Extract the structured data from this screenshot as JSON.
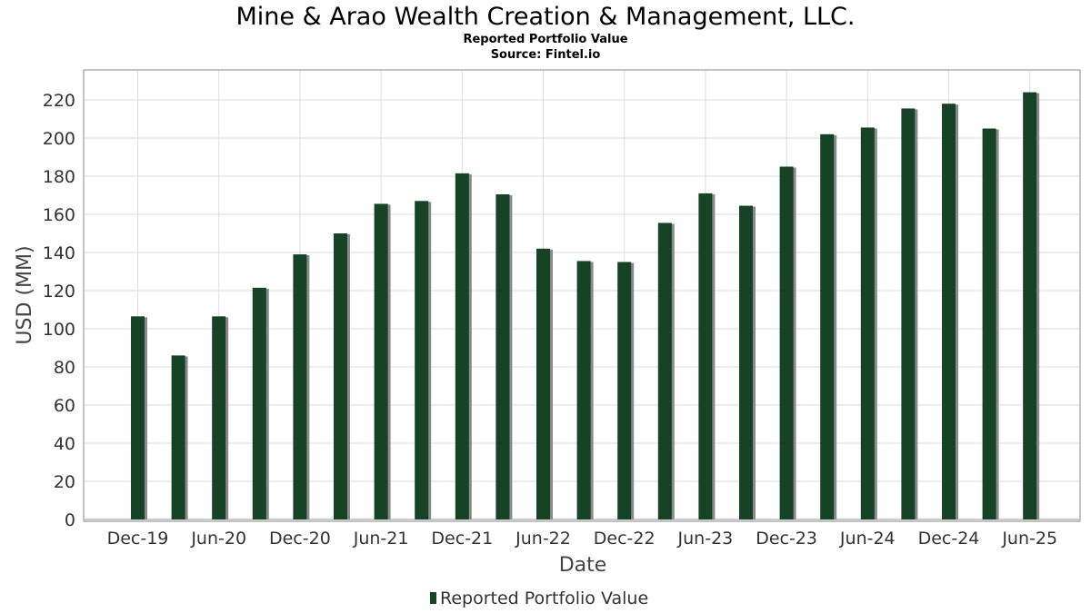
{
  "header": {
    "title": "Mine & Arao Wealth Creation & Management, LLC.",
    "subtitle": "Reported Portfolio Value",
    "source": "Source: Fintel.io"
  },
  "colors": {
    "bar": "#164226",
    "bar_shadow": "#8a8a8a",
    "grid": "#dddddd",
    "plot_border": "#8a8a8a"
  },
  "chart_data": {
    "type": "bar",
    "title": "Mine & Arao Wealth Creation & Management, LLC.",
    "subtitle": "Reported Portfolio Value",
    "xlabel": "Date",
    "ylabel": "USD (MM)",
    "ylim": [
      0,
      230
    ],
    "yticks": [
      0,
      20,
      40,
      60,
      80,
      100,
      120,
      140,
      160,
      180,
      200,
      220
    ],
    "grid": true,
    "legend": "bottom-center",
    "categories": [
      "Dec-19",
      "Mar-20",
      "Jun-20",
      "Sep-20",
      "Dec-20",
      "Mar-21",
      "Jun-21",
      "Sep-21",
      "Dec-21",
      "Mar-22",
      "Jun-22",
      "Sep-22",
      "Dec-22",
      "Mar-23",
      "Jun-23",
      "Sep-23",
      "Dec-23",
      "Mar-24",
      "Jun-24",
      "Sep-24",
      "Dec-24",
      "Mar-25",
      "Jun-25"
    ],
    "xtick_labels": [
      "Dec-19",
      "Jun-20",
      "Dec-20",
      "Jun-21",
      "Dec-21",
      "Jun-22",
      "Dec-22",
      "Jun-23",
      "Dec-23",
      "Jun-24",
      "Dec-24",
      "Jun-25"
    ],
    "series": [
      {
        "name": "Reported Portfolio Value",
        "values": [
          106.5,
          86,
          106.5,
          121.5,
          139,
          150,
          165.5,
          167,
          181.5,
          170.5,
          142,
          135.5,
          135,
          155.5,
          171,
          164.5,
          185,
          202,
          205.5,
          215.5,
          218,
          205,
          224
        ]
      }
    ]
  }
}
